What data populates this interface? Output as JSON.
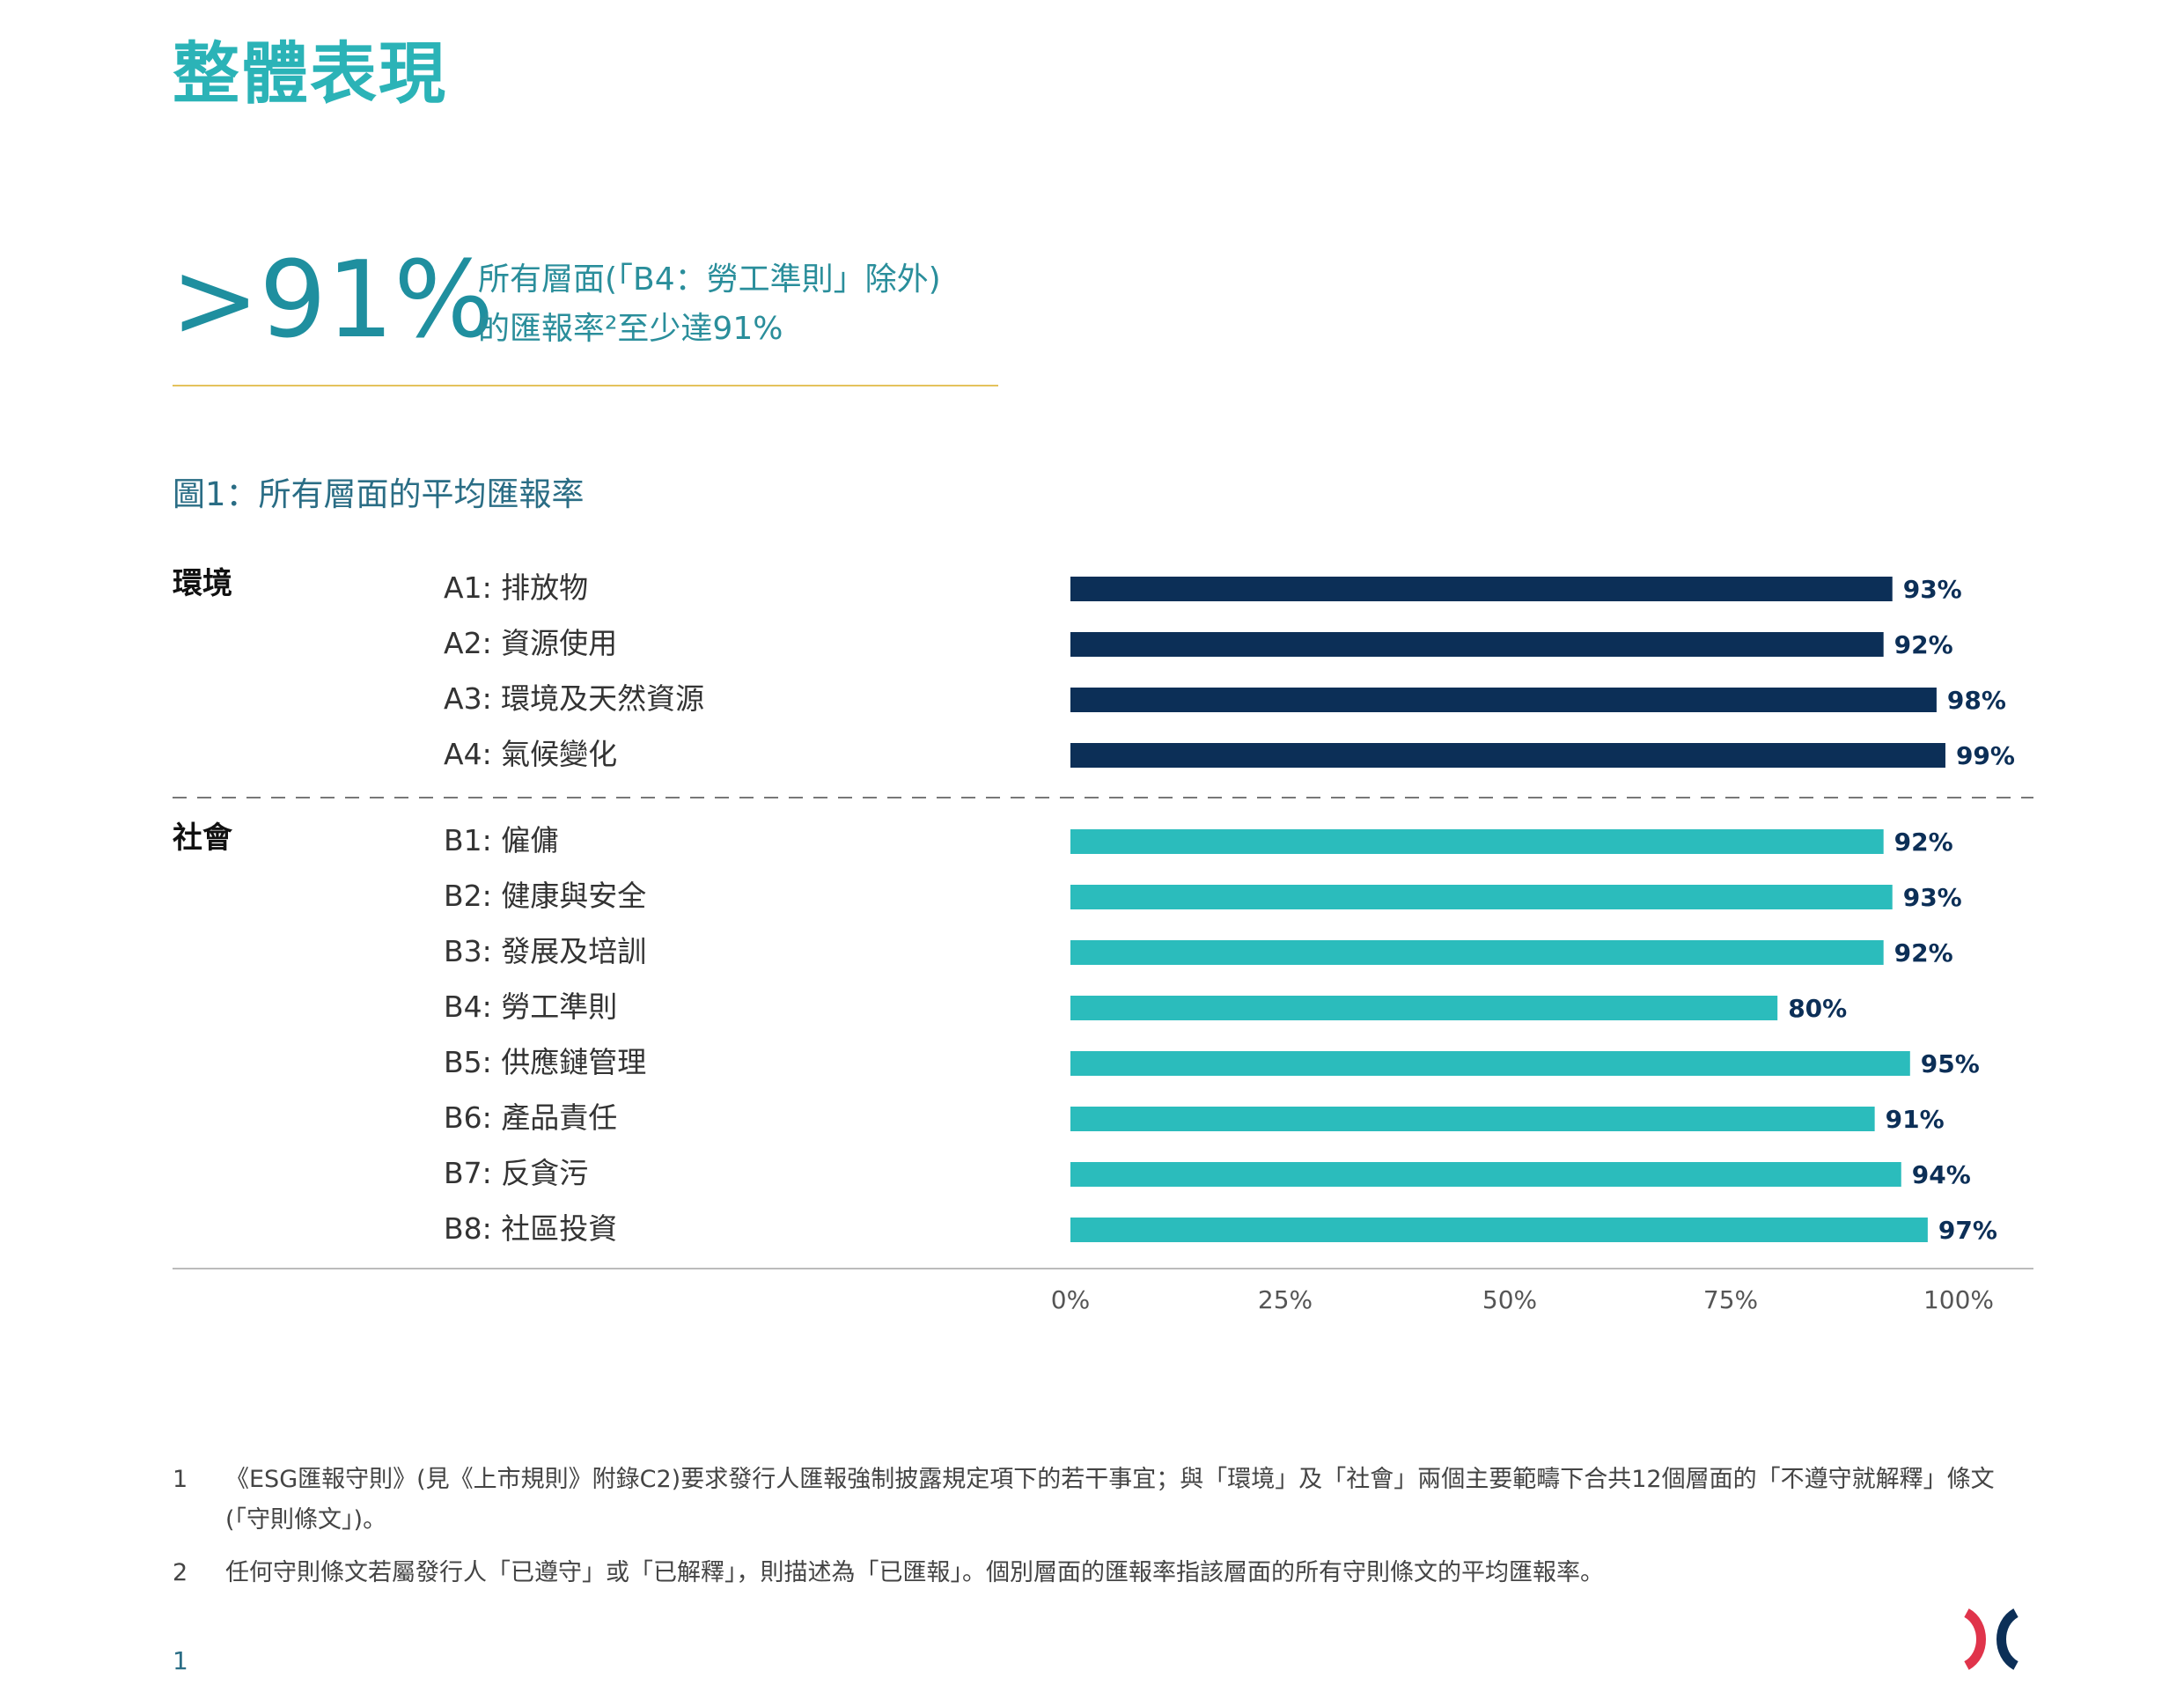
{
  "page": {
    "title": "整體表現",
    "stat_value": ">91%",
    "stat_desc_line1": "所有層面(「B4：勞工準則」除外)",
    "stat_desc_line2": "的匯報率²至少達91%",
    "page_number": "1"
  },
  "figure": {
    "title": "圖1：所有層面的平均匯報率"
  },
  "groups": {
    "environment": "環境",
    "social": "社會"
  },
  "chart_data": {
    "type": "bar",
    "orientation": "horizontal",
    "title": "圖1：所有層面的平均匯報率",
    "xlim": [
      0,
      100
    ],
    "x_ticks": [
      "0%",
      "25%",
      "50%",
      "75%",
      "100%"
    ],
    "grid": false,
    "groups": [
      {
        "name": "環境",
        "color": "#0c2f57",
        "categories": [
          "A1:  排放物",
          "A2:  資源使用",
          "A3:  環境及天然資源",
          "A4:  氣候變化"
        ],
        "values": [
          93,
          92,
          98,
          99
        ],
        "value_labels": [
          "93%",
          "92%",
          "98%",
          "99%"
        ]
      },
      {
        "name": "社會",
        "color": "#2bbcbc",
        "categories": [
          "B1:  僱傭",
          "B2:  健康與安全",
          "B3:  發展及培訓",
          "B4:  勞工準則",
          "B5:  供應鏈管理",
          "B6:  產品責任",
          "B7:  反貪污",
          "B8:  社區投資"
        ],
        "values": [
          92,
          93,
          92,
          80,
          95,
          91,
          94,
          97
        ],
        "value_labels": [
          "92%",
          "93%",
          "92%",
          "80%",
          "95%",
          "91%",
          "94%",
          "97%"
        ]
      }
    ]
  },
  "footnotes": [
    {
      "num": "1",
      "text": "《ESG匯報守則》(見《上市規則》附錄C2)要求發行人匯報強制披露規定項下的若干事宜；與「環境」及「社會」兩個主要範疇下合共12個層面的「不遵守就解釋」條文(「守則條文」)。"
    },
    {
      "num": "2",
      "text": "任何守則條文若屬發行人「已遵守」或「已解釋」，則描述為「已匯報」。個別層面的匯報率指該層面的所有守則條文的平均匯報率。"
    }
  ],
  "logo": {
    "icon": "hkex-logo-icon",
    "colors": [
      "#e0344b",
      "#0c2f57"
    ]
  }
}
